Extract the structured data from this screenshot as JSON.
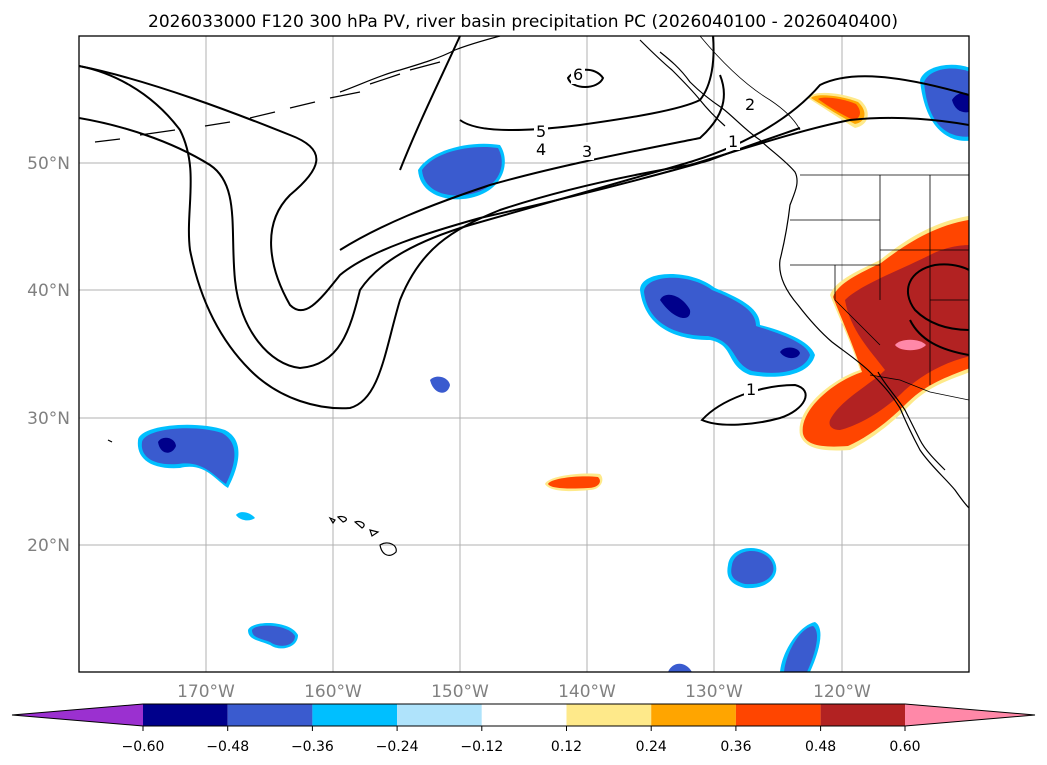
{
  "title": "2026033000 F120 300 hPa PV, river basin precipitation PC (2026040100 - 2026040400)",
  "map": {
    "lon_range": [
      -180,
      -110
    ],
    "lat_range": [
      10,
      60
    ],
    "lat_labels": [
      "20°N",
      "30°N",
      "40°N",
      "50°N"
    ],
    "lon_labels": [
      "170°W",
      "160°W",
      "150°W",
      "140°W",
      "130°W",
      "120°W"
    ],
    "contour_labels": [
      "6",
      "5",
      "4",
      "3",
      "2",
      "1",
      "1"
    ]
  },
  "colorbar": {
    "ticks": [
      "−0.60",
      "−0.48",
      "−0.36",
      "−0.24",
      "−0.12",
      "0.12",
      "0.24",
      "0.36",
      "0.48",
      "0.60"
    ],
    "colors": [
      "#9b30d0",
      "#00008b",
      "#3a5bcf",
      "#00bfff",
      "#afe3fb",
      "#ffffff",
      "#fee98a",
      "#ffa500",
      "#ff4500",
      "#b22222",
      "#ff88a8"
    ]
  },
  "colors": {
    "blue": "#3a5bcf",
    "navy": "#00008b",
    "cyan": "#00bfff",
    "lightblue": "#afe3fb",
    "yellow": "#fee98a",
    "orange": "#ffa500",
    "redorange": "#ff4500",
    "firebrick": "#b22222",
    "pink": "#ff88a8"
  }
}
